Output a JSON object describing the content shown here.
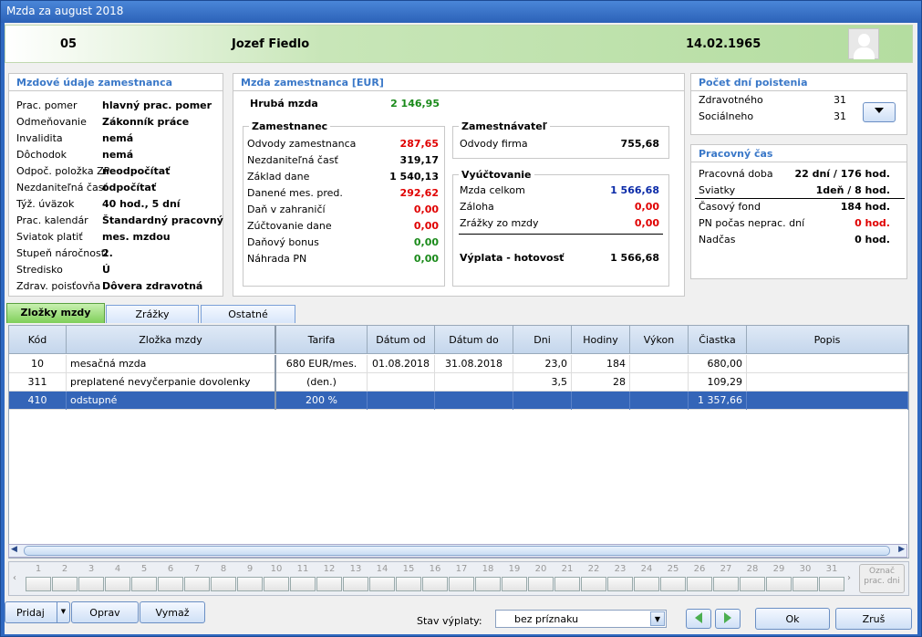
{
  "window": {
    "title": "Mzda za august 2018"
  },
  "header": {
    "code": "05",
    "name": "Jozef Fiedlo",
    "birth_date": "14.02.1965"
  },
  "employee": {
    "title": "Mzdové údaje zamestnanca",
    "rows": [
      {
        "label": "Prac. pomer",
        "value": "hlavný prac. pomer"
      },
      {
        "label": "Odmeňovanie",
        "value": "Zákonník práce"
      },
      {
        "label": "Invalidita",
        "value": "nemá"
      },
      {
        "label": "Dôchodok",
        "value": "nemá"
      },
      {
        "label": "Odpoč. položka ZP",
        "value": "neodpočítať"
      },
      {
        "label": "Nezdaniteľná časť",
        "value": "odpočítať"
      },
      {
        "label": "Týž. úväzok",
        "value": "40 hod., 5 dní"
      },
      {
        "label": "Prac. kalendár",
        "value": "Štandardný pracovný"
      },
      {
        "label": "Sviatok platiť",
        "value": "mes. mzdou"
      },
      {
        "label": "Stupeň náročnosti",
        "value": "2."
      },
      {
        "label": "Stredisko",
        "value": "Ú"
      },
      {
        "label": "Zdrav. poisťovňa",
        "value": "Dôvera zdravotná"
      }
    ]
  },
  "wage": {
    "title": "Mzda zamestnanca [EUR]",
    "gross_label": "Hrubá mzda",
    "gross_value": "2 146,95",
    "employee_title": "Zamestnanec",
    "employee_rows": [
      {
        "label": "Odvody zamestnanca",
        "value": "287,65",
        "color": "red"
      },
      {
        "label": "Nezdaniteľná časť",
        "value": "319,17",
        "color": "black"
      },
      {
        "label": "Základ dane",
        "value": "1 540,13",
        "color": "black"
      },
      {
        "label": "Danené mes. pred.",
        "value": "292,62",
        "color": "red"
      },
      {
        "label": "Daň v zahraničí",
        "value": "0,00",
        "color": "red"
      },
      {
        "label": "Zúčtovanie dane",
        "value": "0,00",
        "color": "red"
      },
      {
        "label": "Daňový bonus",
        "value": "0,00",
        "color": "green"
      },
      {
        "label": "Náhrada PN",
        "value": "0,00",
        "color": "green"
      }
    ],
    "employer_title": "Zamestnávateľ",
    "employer_rows": [
      {
        "label": "Odvody firma",
        "value": "755,68"
      }
    ],
    "settlement_title": "Vyúčtovanie",
    "settlement_rows": [
      {
        "label": "Mzda celkom",
        "value": "1 566,68",
        "color": "blue"
      },
      {
        "label": "Záloha",
        "value": "0,00",
        "color": "red"
      },
      {
        "label": "Zrážky zo mzdy",
        "value": "0,00",
        "color": "red"
      }
    ],
    "payout_label": "Výplata - hotovosť",
    "payout_value": "1 566,68"
  },
  "insurance": {
    "title": "Počet dní poistenia",
    "rows": [
      {
        "label": "Zdravotného",
        "value": "31"
      },
      {
        "label": "Sociálneho",
        "value": "31"
      }
    ],
    "dropdown_icon": "chevron-down-icon"
  },
  "worktime": {
    "title": "Pracovný čas",
    "rows": [
      {
        "label": "Pracovná doba",
        "value": "22 dní / 176 hod.",
        "color": "black"
      },
      {
        "label": "Sviatky",
        "value": "1deň / 8 hod.",
        "color": "black"
      },
      {
        "label": "Časový fond",
        "value": "184 hod.",
        "color": "black"
      },
      {
        "label": "PN počas neprac. dní",
        "value": "0 hod.",
        "color": "red"
      },
      {
        "label": "Nadčas",
        "value": "0 hod.",
        "color": "black"
      }
    ]
  },
  "tabs": [
    {
      "label": "Zložky mzdy"
    },
    {
      "label": "Zrážky"
    },
    {
      "label": "Ostatné"
    }
  ],
  "table": {
    "columns": [
      "Kód",
      "Zložka mzdy",
      "Tarifa",
      "Dátum od",
      "Dátum do",
      "Dni",
      "Hodiny",
      "Výkon",
      "Čiastka",
      "Popis"
    ],
    "rows": [
      {
        "kod": "10",
        "zlozka": "mesačná mzda",
        "tarifa": "680 EUR/mes.",
        "od": "01.08.2018",
        "do": "31.08.2018",
        "dni": "23,0",
        "hodiny": "184",
        "vykon": "",
        "ciastka": "680,00",
        "popis": ""
      },
      {
        "kod": "311",
        "zlozka": "preplatené nevyčerpanie dovolenky",
        "tarifa": "(den.)",
        "od": "",
        "do": "",
        "dni": "3,5",
        "hodiny": "28",
        "vykon": "",
        "ciastka": "109,29",
        "popis": ""
      },
      {
        "kod": "410",
        "zlozka": "odstupné",
        "tarifa": "200  %",
        "od": "",
        "do": "",
        "dni": "",
        "hodiny": "",
        "vykon": "",
        "ciastka": "1 357,66",
        "popis": ""
      }
    ]
  },
  "days": [
    "1",
    "2",
    "3",
    "4",
    "5",
    "6",
    "7",
    "8",
    "9",
    "10",
    "11",
    "12",
    "13",
    "14",
    "15",
    "16",
    "17",
    "18",
    "19",
    "20",
    "21",
    "22",
    "23",
    "24",
    "25",
    "26",
    "27",
    "28",
    "29",
    "30",
    "31"
  ],
  "mark_days_label_1": "Označ",
  "mark_days_label_2": "prac. dni",
  "buttons": {
    "add": "Pridaj",
    "edit": "Oprav",
    "delete": "Vymaž",
    "ok": "Ok",
    "cancel": "Zruš"
  },
  "status": {
    "label": "Stav výplaty:",
    "value": "bez príznaku"
  }
}
